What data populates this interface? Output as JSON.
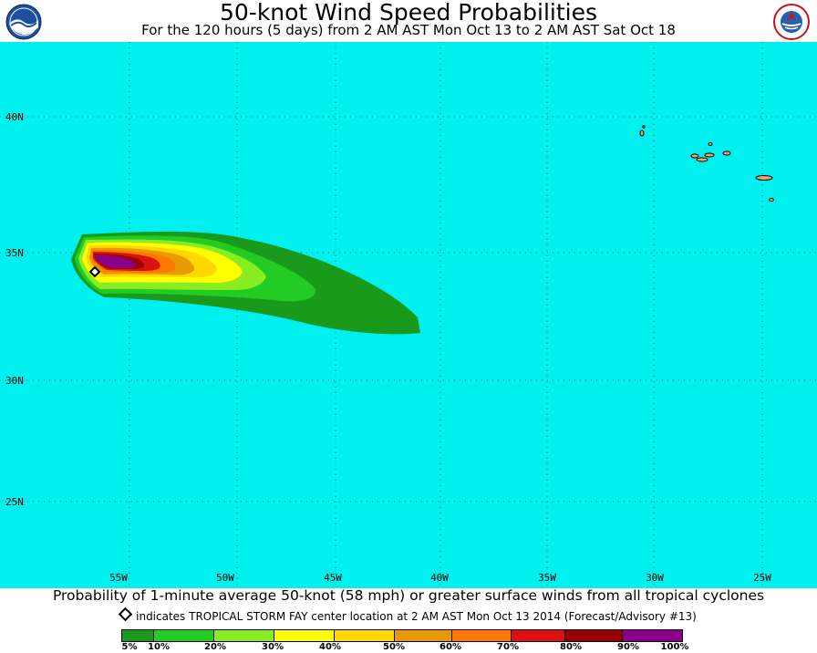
{
  "header": {
    "title": "50-knot Wind Speed Probabilities",
    "subtitle": "For the 120 hours (5 days) from 2 AM AST Mon Oct 13 to 2 AM AST Sat Oct 18"
  },
  "logos": {
    "left": "noaa-logo",
    "right": "national-weather-service-logo"
  },
  "map": {
    "ocean_color": "#00f0f0",
    "land_color": "#ffa060",
    "lat_labels": [
      "40N",
      "35N",
      "30N",
      "25N"
    ],
    "lon_labels": [
      "55W",
      "50W",
      "45W",
      "40W",
      "35W",
      "30W",
      "25W"
    ],
    "grid": "dotted",
    "storm_marker": {
      "icon": "diamond-icon",
      "lon": -56.6,
      "lat": 34.3
    }
  },
  "footer": {
    "caption": "Probability of 1-minute average 50-knot (58 mph) or greater surface winds from all tropical cyclones",
    "indicator": "indicates TROPICAL STORM FAY center location at 2 AM AST Mon Oct 13 2014 (Forecast/Advisory #13)"
  },
  "legend": {
    "labels": [
      "5%",
      "10%",
      "20%",
      "30%",
      "40%",
      "50%",
      "60%",
      "70%",
      "80%",
      "90%",
      "100%"
    ],
    "colors": [
      "#1a9a1a",
      "#22cc22",
      "#88ee22",
      "#ffff00",
      "#ffd800",
      "#e89a00",
      "#ff7800",
      "#dd1010",
      "#990000",
      "#8b008b"
    ]
  }
}
